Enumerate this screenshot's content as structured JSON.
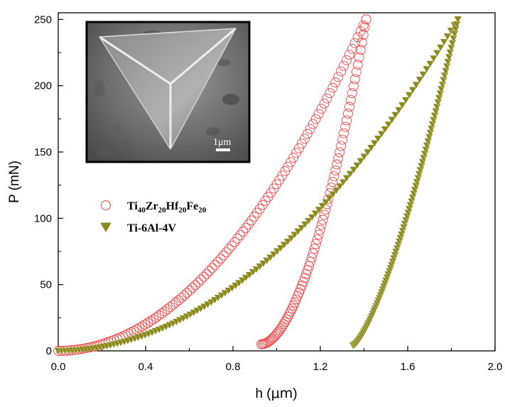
{
  "chart_data": {
    "type": "scatter",
    "xlabel_main": "h (",
    "xlabel_unit": "μm",
    "xlabel_end": ")",
    "ylabel": "P (mN)",
    "xlim": [
      0.0,
      2.0
    ],
    "ylim": [
      0,
      255
    ],
    "x_ticks": [
      0.0,
      0.4,
      0.8,
      1.2,
      1.6,
      2.0
    ],
    "x_tick_labels": [
      "0.0",
      "0.4",
      "0.8",
      "1.2",
      "1.6",
      "2.0"
    ],
    "y_ticks": [
      0,
      50,
      100,
      150,
      200,
      250
    ],
    "y_tick_labels": [
      "0",
      "50",
      "100",
      "150",
      "200",
      "250"
    ],
    "legend_position": "middle-left",
    "series": [
      {
        "name_parts": [
          {
            "text": "Ti",
            "sub": false
          },
          {
            "text": "40",
            "sub": true
          },
          {
            "text": "Zr",
            "sub": false
          },
          {
            "text": "20",
            "sub": true
          },
          {
            "text": "Hf",
            "sub": false
          },
          {
            "text": "20",
            "sub": true
          },
          {
            "text": "Fe",
            "sub": false
          },
          {
            "text": "20",
            "sub": true
          }
        ],
        "marker": "open-circle",
        "color": "#ee4444",
        "loading": {
          "h0": 0.0,
          "hmax": 1.41,
          "pmax": 250,
          "exponent": 2
        },
        "unloading": {
          "hf": 0.93,
          "hmax": 1.41,
          "pmin": 5,
          "pmax": 250,
          "exponent": 1.8
        }
      },
      {
        "name": "Ti-6Al-4V",
        "marker": "filled-down-triangle",
        "color": "#8b8a1a",
        "loading": {
          "h0": 0.0,
          "hmax": 1.83,
          "pmax": 250,
          "exponent": 2
        },
        "unloading": {
          "hf": 1.35,
          "hmax": 1.83,
          "pmin": 4,
          "pmax": 250,
          "exponent": 1.4
        }
      }
    ]
  },
  "inset": {
    "scale_bar_prefix": "1",
    "scale_bar_unit": "μm"
  }
}
